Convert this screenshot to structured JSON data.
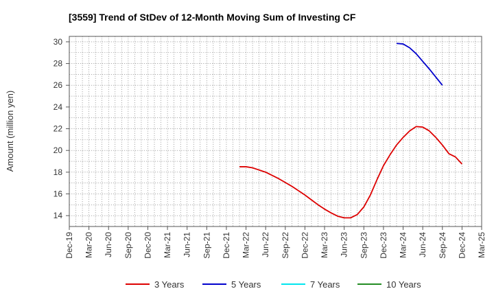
{
  "chart_data": {
    "type": "line",
    "title": "[3559]  Trend of StDev of 12-Month Moving Sum of Investing CF",
    "ylabel": "Amount (million yen)",
    "xlabel": "",
    "x_ticks": [
      "Dec-19",
      "Mar-20",
      "Jun-20",
      "Sep-20",
      "Dec-20",
      "Mar-21",
      "Jun-21",
      "Sep-21",
      "Dec-21",
      "Mar-22",
      "Jun-22",
      "Sep-22",
      "Dec-22",
      "Mar-23",
      "Jun-23",
      "Sep-23",
      "Dec-23",
      "Mar-24",
      "Jun-24",
      "Sep-24",
      "Dec-24",
      "Mar-25"
    ],
    "y_ticks": [
      14,
      16,
      18,
      20,
      22,
      24,
      26,
      28,
      30
    ],
    "ylim": [
      13,
      30.5
    ],
    "grid": true,
    "legend_position": "bottom",
    "series": [
      {
        "name": "3 Years",
        "color": "#dd0000",
        "points": [
          [
            "Feb-22",
            18.5
          ],
          [
            "Mar-22",
            18.5
          ],
          [
            "Apr-22",
            18.4
          ],
          [
            "May-22",
            18.2
          ],
          [
            "Jun-22",
            18.0
          ],
          [
            "Jul-22",
            17.7
          ],
          [
            "Aug-22",
            17.4
          ],
          [
            "Sep-22",
            17.05
          ],
          [
            "Oct-22",
            16.7
          ],
          [
            "Nov-22",
            16.3
          ],
          [
            "Dec-22",
            15.9
          ],
          [
            "Jan-23",
            15.45
          ],
          [
            "Feb-23",
            15.0
          ],
          [
            "Mar-23",
            14.6
          ],
          [
            "Apr-23",
            14.25
          ],
          [
            "May-23",
            13.95
          ],
          [
            "Jun-23",
            13.8
          ],
          [
            "Jul-23",
            13.8
          ],
          [
            "Aug-23",
            14.1
          ],
          [
            "Sep-23",
            14.8
          ],
          [
            "Oct-23",
            15.9
          ],
          [
            "Nov-23",
            17.3
          ],
          [
            "Dec-23",
            18.6
          ],
          [
            "Jan-24",
            19.6
          ],
          [
            "Feb-24",
            20.5
          ],
          [
            "Mar-24",
            21.2
          ],
          [
            "Apr-24",
            21.8
          ],
          [
            "May-24",
            22.2
          ],
          [
            "Jun-24",
            22.15
          ],
          [
            "Jul-24",
            21.8
          ],
          [
            "Aug-24",
            21.2
          ],
          [
            "Sep-24",
            20.5
          ],
          [
            "Oct-24",
            19.7
          ],
          [
            "Nov-24",
            19.4
          ],
          [
            "Dec-24",
            18.75
          ]
        ]
      },
      {
        "name": "5 Years",
        "color": "#0000cc",
        "points": [
          [
            "Feb-24",
            29.85
          ],
          [
            "Mar-24",
            29.8
          ],
          [
            "Apr-24",
            29.45
          ],
          [
            "May-24",
            28.9
          ],
          [
            "Jun-24",
            28.2
          ],
          [
            "Jul-24",
            27.5
          ],
          [
            "Aug-24",
            26.75
          ],
          [
            "Sep-24",
            26.0
          ]
        ]
      },
      {
        "name": "7 Years",
        "color": "#00e5ee",
        "points": []
      },
      {
        "name": "10 Years",
        "color": "#228b22",
        "points": []
      }
    ]
  }
}
